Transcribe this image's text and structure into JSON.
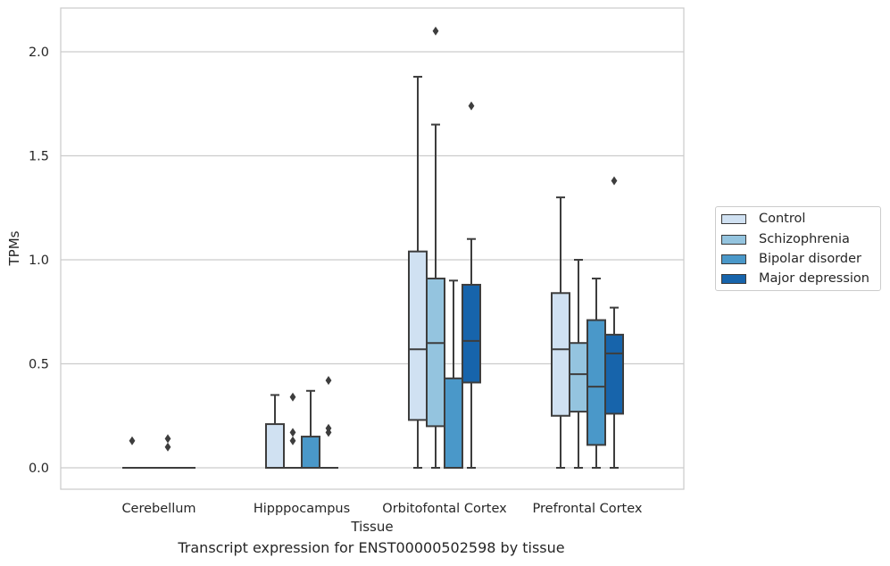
{
  "chart_data": {
    "type": "box",
    "xlabel": "Tissue",
    "ylabel": "TPMs",
    "caption": "Transcript expression for ENST00000502598 by tissue",
    "categories": [
      "Cerebellum",
      "Hipppocampus",
      "Orbitofontal Cortex",
      "Prefrontal Cortex"
    ],
    "ylim": [
      -0.1,
      2.2
    ],
    "yticks": [
      "0.0",
      "0.5",
      "1.0",
      "1.5",
      "2.0"
    ],
    "grid": "horizontal",
    "legend_position": "right",
    "series": [
      {
        "name": "Control",
        "color": "#d0e1f2",
        "boxes": [
          {
            "min": 0,
            "q1": 0,
            "median": 0,
            "q3": 0,
            "max": 0,
            "outliers": [
              0.13
            ]
          },
          {
            "min": 0,
            "q1": 0,
            "median": 0,
            "q3": 0.21,
            "max": 0.35,
            "outliers": []
          },
          {
            "min": 0,
            "q1": 0.23,
            "median": 0.57,
            "q3": 1.04,
            "max": 1.88,
            "outliers": []
          },
          {
            "min": 0,
            "q1": 0.25,
            "median": 0.57,
            "q3": 0.84,
            "max": 1.3,
            "outliers": []
          }
        ]
      },
      {
        "name": "Schizophrenia",
        "color": "#94c4df",
        "boxes": [
          {
            "min": 0,
            "q1": 0,
            "median": 0,
            "q3": 0,
            "max": 0,
            "outliers": []
          },
          {
            "min": 0,
            "q1": 0,
            "median": 0,
            "q3": 0,
            "max": 0,
            "outliers": [
              0.13,
              0.17,
              0.34
            ]
          },
          {
            "min": 0,
            "q1": 0.2,
            "median": 0.6,
            "q3": 0.91,
            "max": 1.65,
            "outliers": [
              2.1
            ]
          },
          {
            "min": 0,
            "q1": 0.27,
            "median": 0.45,
            "q3": 0.6,
            "max": 1.0,
            "outliers": []
          }
        ]
      },
      {
        "name": "Bipolar disorder",
        "color": "#4a98c9",
        "boxes": [
          {
            "min": 0,
            "q1": 0,
            "median": 0,
            "q3": 0,
            "max": 0,
            "outliers": [
              0.1,
              0.14
            ]
          },
          {
            "min": 0,
            "q1": 0,
            "median": 0,
            "q3": 0.15,
            "max": 0.37,
            "outliers": []
          },
          {
            "min": 0,
            "q1": 0,
            "median": 0,
            "q3": 0.43,
            "max": 0.9,
            "outliers": []
          },
          {
            "min": 0,
            "q1": 0.11,
            "median": 0.39,
            "q3": 0.71,
            "max": 0.91,
            "outliers": []
          }
        ]
      },
      {
        "name": "Major depression",
        "color": "#1764ab",
        "boxes": [
          {
            "min": 0,
            "q1": 0,
            "median": 0,
            "q3": 0,
            "max": 0,
            "outliers": []
          },
          {
            "min": 0,
            "q1": 0,
            "median": 0,
            "q3": 0,
            "max": 0,
            "outliers": [
              0.17,
              0.19,
              0.42
            ]
          },
          {
            "min": 0,
            "q1": 0.41,
            "median": 0.61,
            "q3": 0.88,
            "max": 1.1,
            "outliers": [
              1.74
            ]
          },
          {
            "min": 0,
            "q1": 0.26,
            "median": 0.55,
            "q3": 0.64,
            "max": 0.77,
            "outliers": [
              1.38
            ]
          }
        ]
      }
    ]
  }
}
